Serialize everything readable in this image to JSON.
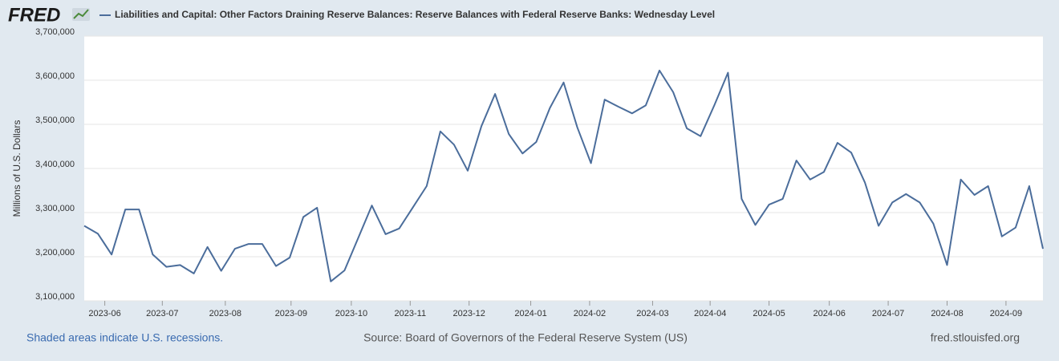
{
  "logo": "FRED",
  "chart_data": {
    "type": "line",
    "y_label": "Millions of U.S. Dollars",
    "series": [
      {
        "name": "Liabilities and Capital: Other Factors Draining Reserve Balances: Reserve Balances with Federal Reserve Banks: Wednesday Level",
        "color": "#4b6d9b",
        "values": [
          3270000,
          3252000,
          3205000,
          3307000,
          3307000,
          3205000,
          3177000,
          3181000,
          3162000,
          3222000,
          3168000,
          3218000,
          3229000,
          3229000,
          3179000,
          3198000,
          3290000,
          3311000,
          3144000,
          3169000,
          3242000,
          3316000,
          3251000,
          3264000,
          3312000,
          3360000,
          3484000,
          3454000,
          3395000,
          3496000,
          3569000,
          3478000,
          3434000,
          3460000,
          3537000,
          3595000,
          3493000,
          3412000,
          3556000,
          3540000,
          3525000,
          3543000,
          3622000,
          3573000,
          3491000,
          3473000,
          3543000,
          3617000,
          3331000,
          3272000,
          3318000,
          3331000,
          3418000,
          3375000,
          3392000,
          3458000,
          3436000,
          3368000,
          3270000,
          3323000,
          3342000,
          3323000,
          3275000,
          3181000,
          3375000,
          3340000,
          3360000,
          3246000,
          3266000,
          3360000,
          3218000
        ]
      }
    ],
    "xlim": [
      0,
      70
    ],
    "xticks": [
      {
        "value": 1.5,
        "label": "2023-06"
      },
      {
        "value": 5.7,
        "label": "2023-07"
      },
      {
        "value": 10.3,
        "label": "2023-08"
      },
      {
        "value": 15.1,
        "label": "2023-09"
      },
      {
        "value": 19.5,
        "label": "2023-10"
      },
      {
        "value": 23.8,
        "label": "2023-11"
      },
      {
        "value": 28.1,
        "label": "2023-12"
      },
      {
        "value": 32.6,
        "label": "2024-01"
      },
      {
        "value": 36.9,
        "label": "2024-02"
      },
      {
        "value": 41.5,
        "label": "2024-03"
      },
      {
        "value": 45.7,
        "label": "2024-04"
      },
      {
        "value": 50.0,
        "label": "2024-05"
      },
      {
        "value": 54.4,
        "label": "2024-06"
      },
      {
        "value": 58.7,
        "label": "2024-07"
      },
      {
        "value": 63.0,
        "label": "2024-08"
      },
      {
        "value": 67.3,
        "label": "2024-09"
      }
    ],
    "ylim": [
      3100000,
      3700000
    ],
    "yticks": [
      {
        "value": 3100000,
        "label": "3,100,000"
      },
      {
        "value": 3200000,
        "label": "3,200,000"
      },
      {
        "value": 3300000,
        "label": "3,300,000"
      },
      {
        "value": 3400000,
        "label": "3,400,000"
      },
      {
        "value": 3500000,
        "label": "3,500,000"
      },
      {
        "value": 3600000,
        "label": "3,600,000"
      },
      {
        "value": 3700000,
        "label": "3,700,000"
      }
    ],
    "grid": true
  },
  "footer": {
    "recessions": "Shaded areas indicate U.S. recessions.",
    "source": "Source: Board of Governors of the Federal Reserve System (US)",
    "site": "fred.stlouisfed.org"
  }
}
